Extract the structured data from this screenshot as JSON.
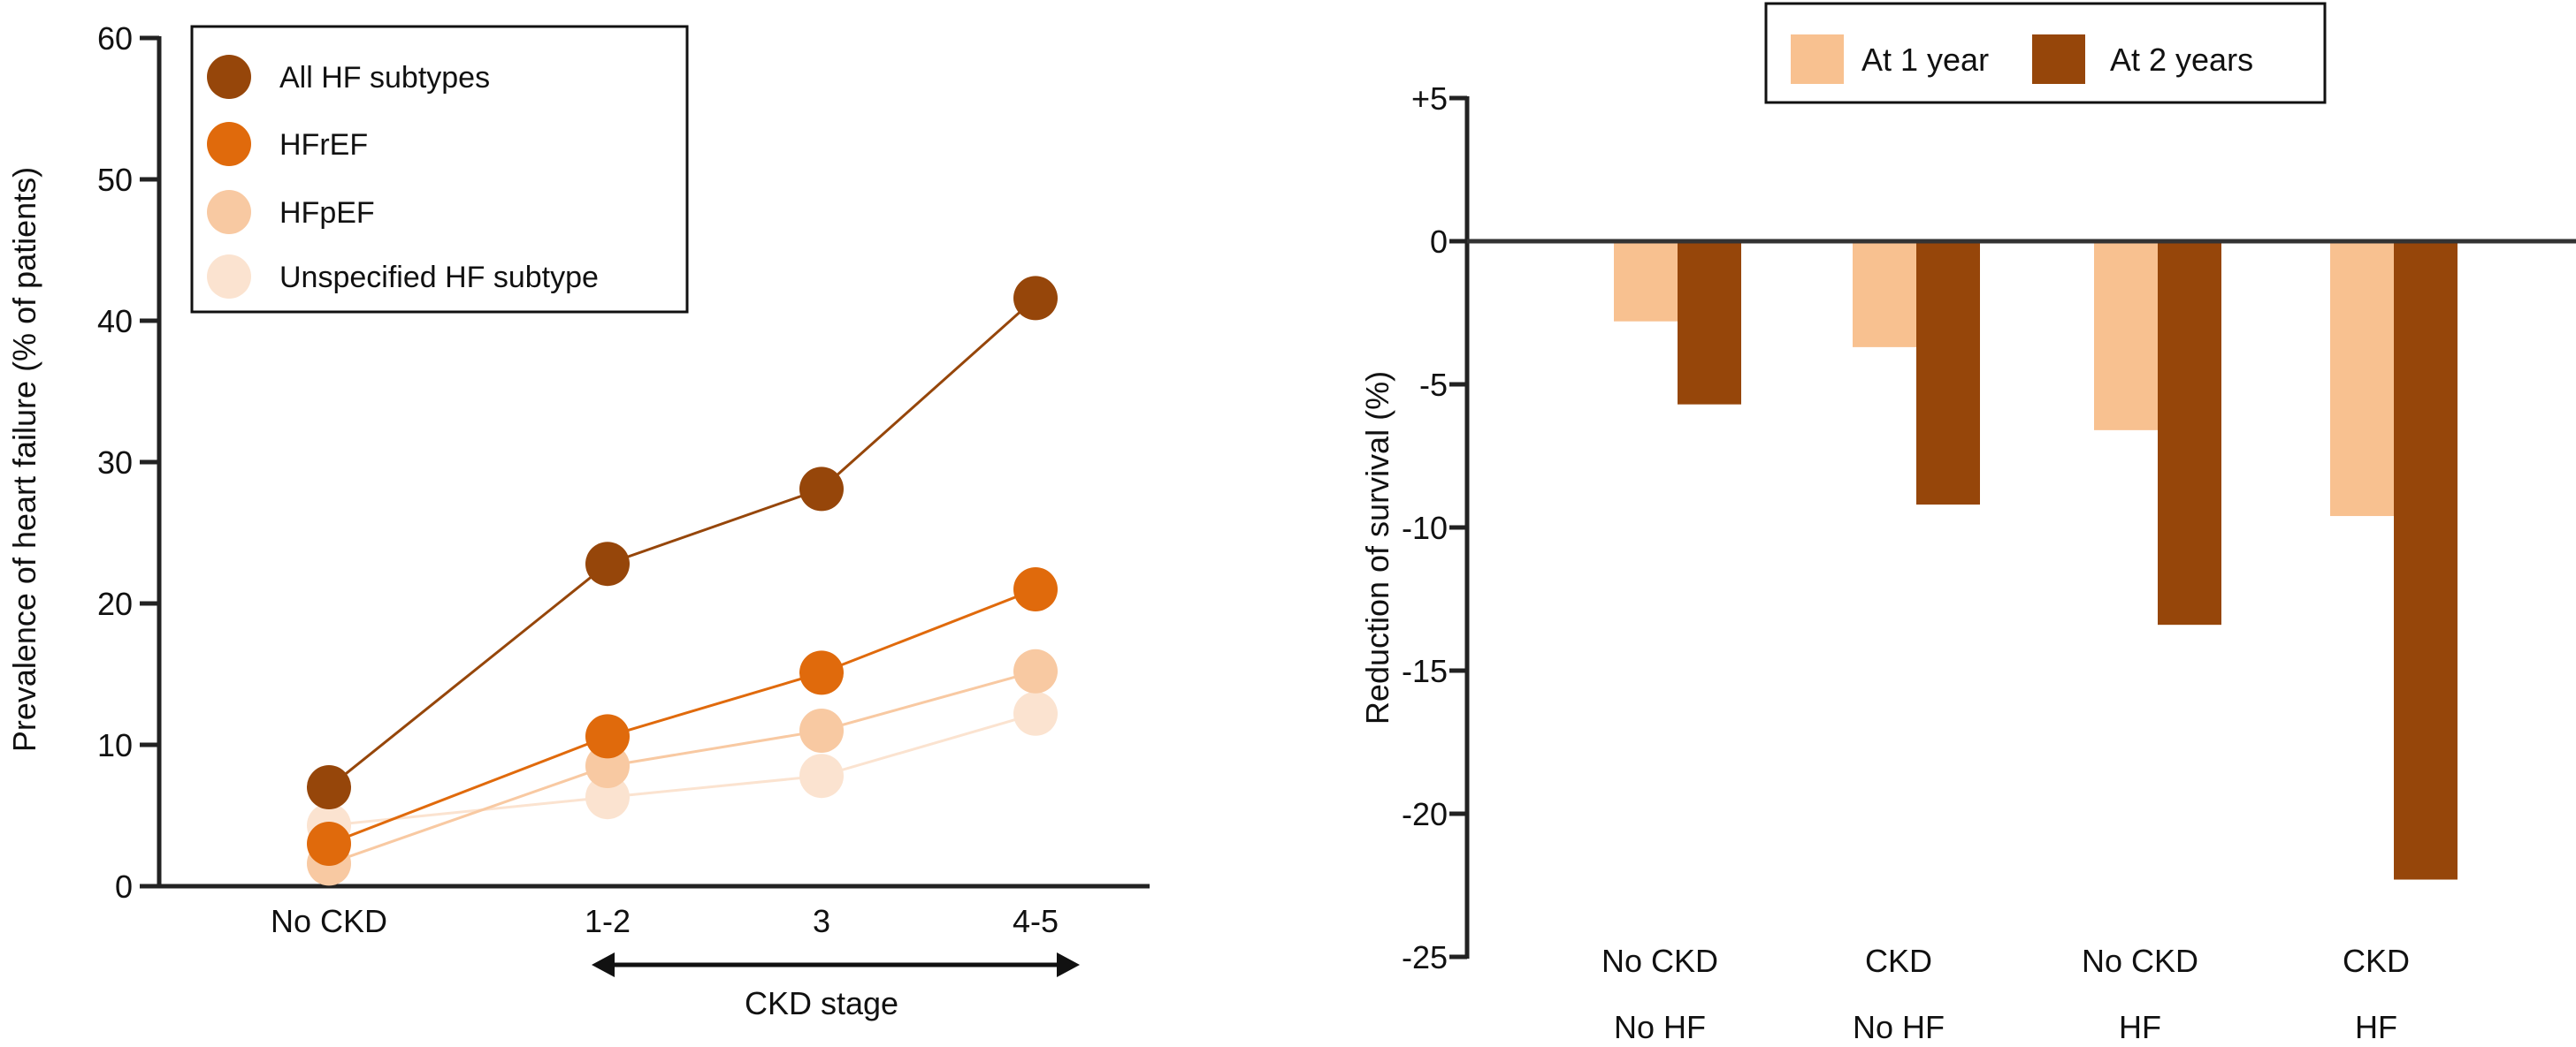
{
  "chart_data": [
    {
      "type": "line",
      "title": "",
      "xlabel": "CKD stage",
      "ylabel": "Prevalence of heart failure (% of patients)",
      "categories": [
        "No CKD",
        "1-2",
        "3",
        "4-5"
      ],
      "ylim": [
        0,
        60
      ],
      "yticks": [
        "0",
        "10",
        "20",
        "30",
        "40",
        "50",
        "60"
      ],
      "grid": false,
      "legend_position": "top-left",
      "series": [
        {
          "name": "All HF subtypes",
          "values": [
            7.0,
            22.8,
            28.1,
            41.6
          ],
          "color": "#96460A"
        },
        {
          "name": "HFrEF",
          "values": [
            3.0,
            10.6,
            15.1,
            21.0
          ],
          "color": "#E06A0C"
        },
        {
          "name": "HFpEF",
          "values": [
            1.6,
            8.5,
            11.0,
            15.2
          ],
          "color": "#F8C9A2"
        },
        {
          "name": "Unspecified HF subtype",
          "values": [
            4.3,
            6.3,
            7.8,
            12.2
          ],
          "color": "#FBE3D0"
        }
      ]
    },
    {
      "type": "bar",
      "title": "",
      "xlabel": "",
      "ylabel": "Reduction of survival (%)",
      "categories": [
        [
          "No CKD",
          "No HF"
        ],
        [
          "CKD",
          "No HF"
        ],
        [
          "No CKD",
          "HF"
        ],
        [
          "CKD",
          "HF"
        ]
      ],
      "ylim": [
        -25,
        5
      ],
      "yticks": [
        "+5",
        "0",
        "-5",
        "-10",
        "-15",
        "-20",
        "-25"
      ],
      "grid": false,
      "legend_position": "top",
      "series": [
        {
          "name": "At 1 year",
          "values": [
            -2.8,
            -3.7,
            -6.6,
            -9.6
          ],
          "color": "#F8C190"
        },
        {
          "name": "At 2 years",
          "values": [
            -5.7,
            -9.2,
            -13.4,
            -22.3
          ],
          "color": "#96460A"
        }
      ]
    }
  ]
}
